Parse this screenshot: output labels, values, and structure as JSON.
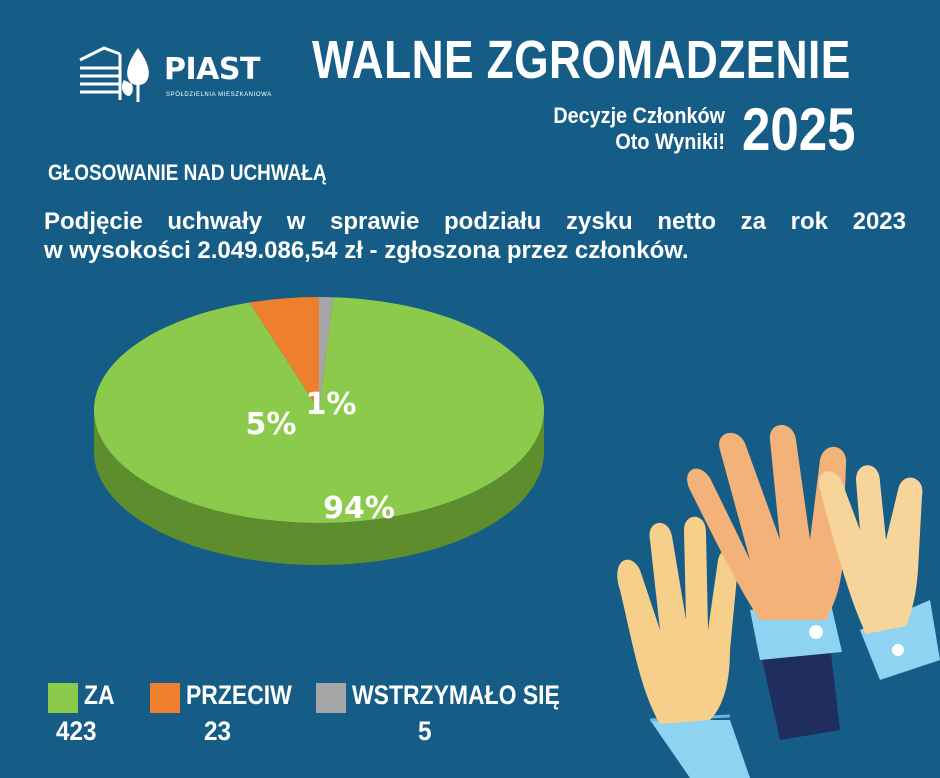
{
  "logo": {
    "name": "PIAST",
    "sub": "SPÓŁDZIELNIA MIESZKANIOWA"
  },
  "header": {
    "title": "WALNE ZGROMADZENIE",
    "subtitle_line1": "Decyzje Członków",
    "subtitle_line2": "Oto Wyniki!",
    "year": "2025"
  },
  "section_title": "GŁOSOWANIE NAD UCHWAŁĄ",
  "description_line1": "Podjęcie uchwały w sprawie podziału zysku netto za rok 2023",
  "description_line2": "w wysokości 2.049.086,54 zł - zgłoszona przez członków.",
  "colors": {
    "za": "#8cca4c",
    "przeciw": "#ee7f2d",
    "wstrzymalo": "#a6a6a6",
    "background": "#155d86"
  },
  "chart_data": {
    "type": "pie",
    "slices": [
      {
        "label": "ZA",
        "count": 423,
        "percent": 94,
        "percent_label": "94%",
        "color": "#8cca4c"
      },
      {
        "label": "PRZECIW",
        "count": 23,
        "percent": 5,
        "percent_label": "5%",
        "color": "#ee7f2d"
      },
      {
        "label": "WSTRZYMAŁO SIĘ",
        "count": 5,
        "percent": 1,
        "percent_label": "1%",
        "color": "#a6a6a6"
      }
    ]
  },
  "legend": [
    {
      "label": "ZA",
      "count": "423"
    },
    {
      "label": "PRZECIW",
      "count": "23"
    },
    {
      "label": "WSTRZYMAŁO SIĘ",
      "count": "5"
    }
  ]
}
